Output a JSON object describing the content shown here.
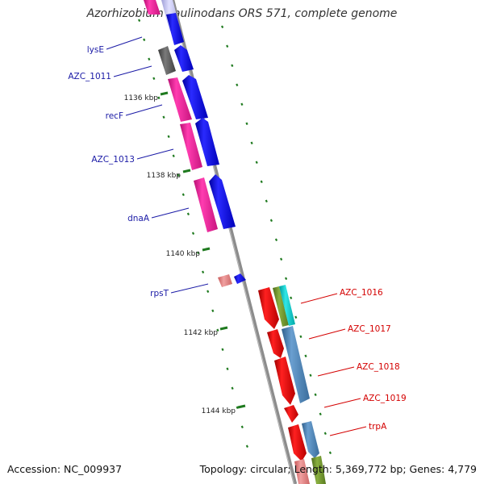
{
  "title": "Azorhizobium caulinodans ORS 571, complete genome",
  "footer": {
    "accession": "Accession: NC_009937",
    "summary": "Topology: circular; Length: 5,369,772 bp; Genes: 4,779"
  },
  "colors": {
    "backbone": "#8c8c8c",
    "tick": "#1f7a1f",
    "label_left": "#1a1aa6",
    "label_right": "#d40000"
  },
  "kbp_ticks": [
    "1136 kbp",
    "1138 kbp",
    "1140 kbp",
    "1142 kbp",
    "1144 kbp"
  ],
  "left_genes": [
    "lysE",
    "AZC_1011",
    "recF",
    "AZC_1013",
    "dnaA",
    "rpsT"
  ],
  "right_genes": [
    "AZC_1016",
    "AZC_1017",
    "AZC_1018",
    "AZC_1019",
    "trpA"
  ]
}
